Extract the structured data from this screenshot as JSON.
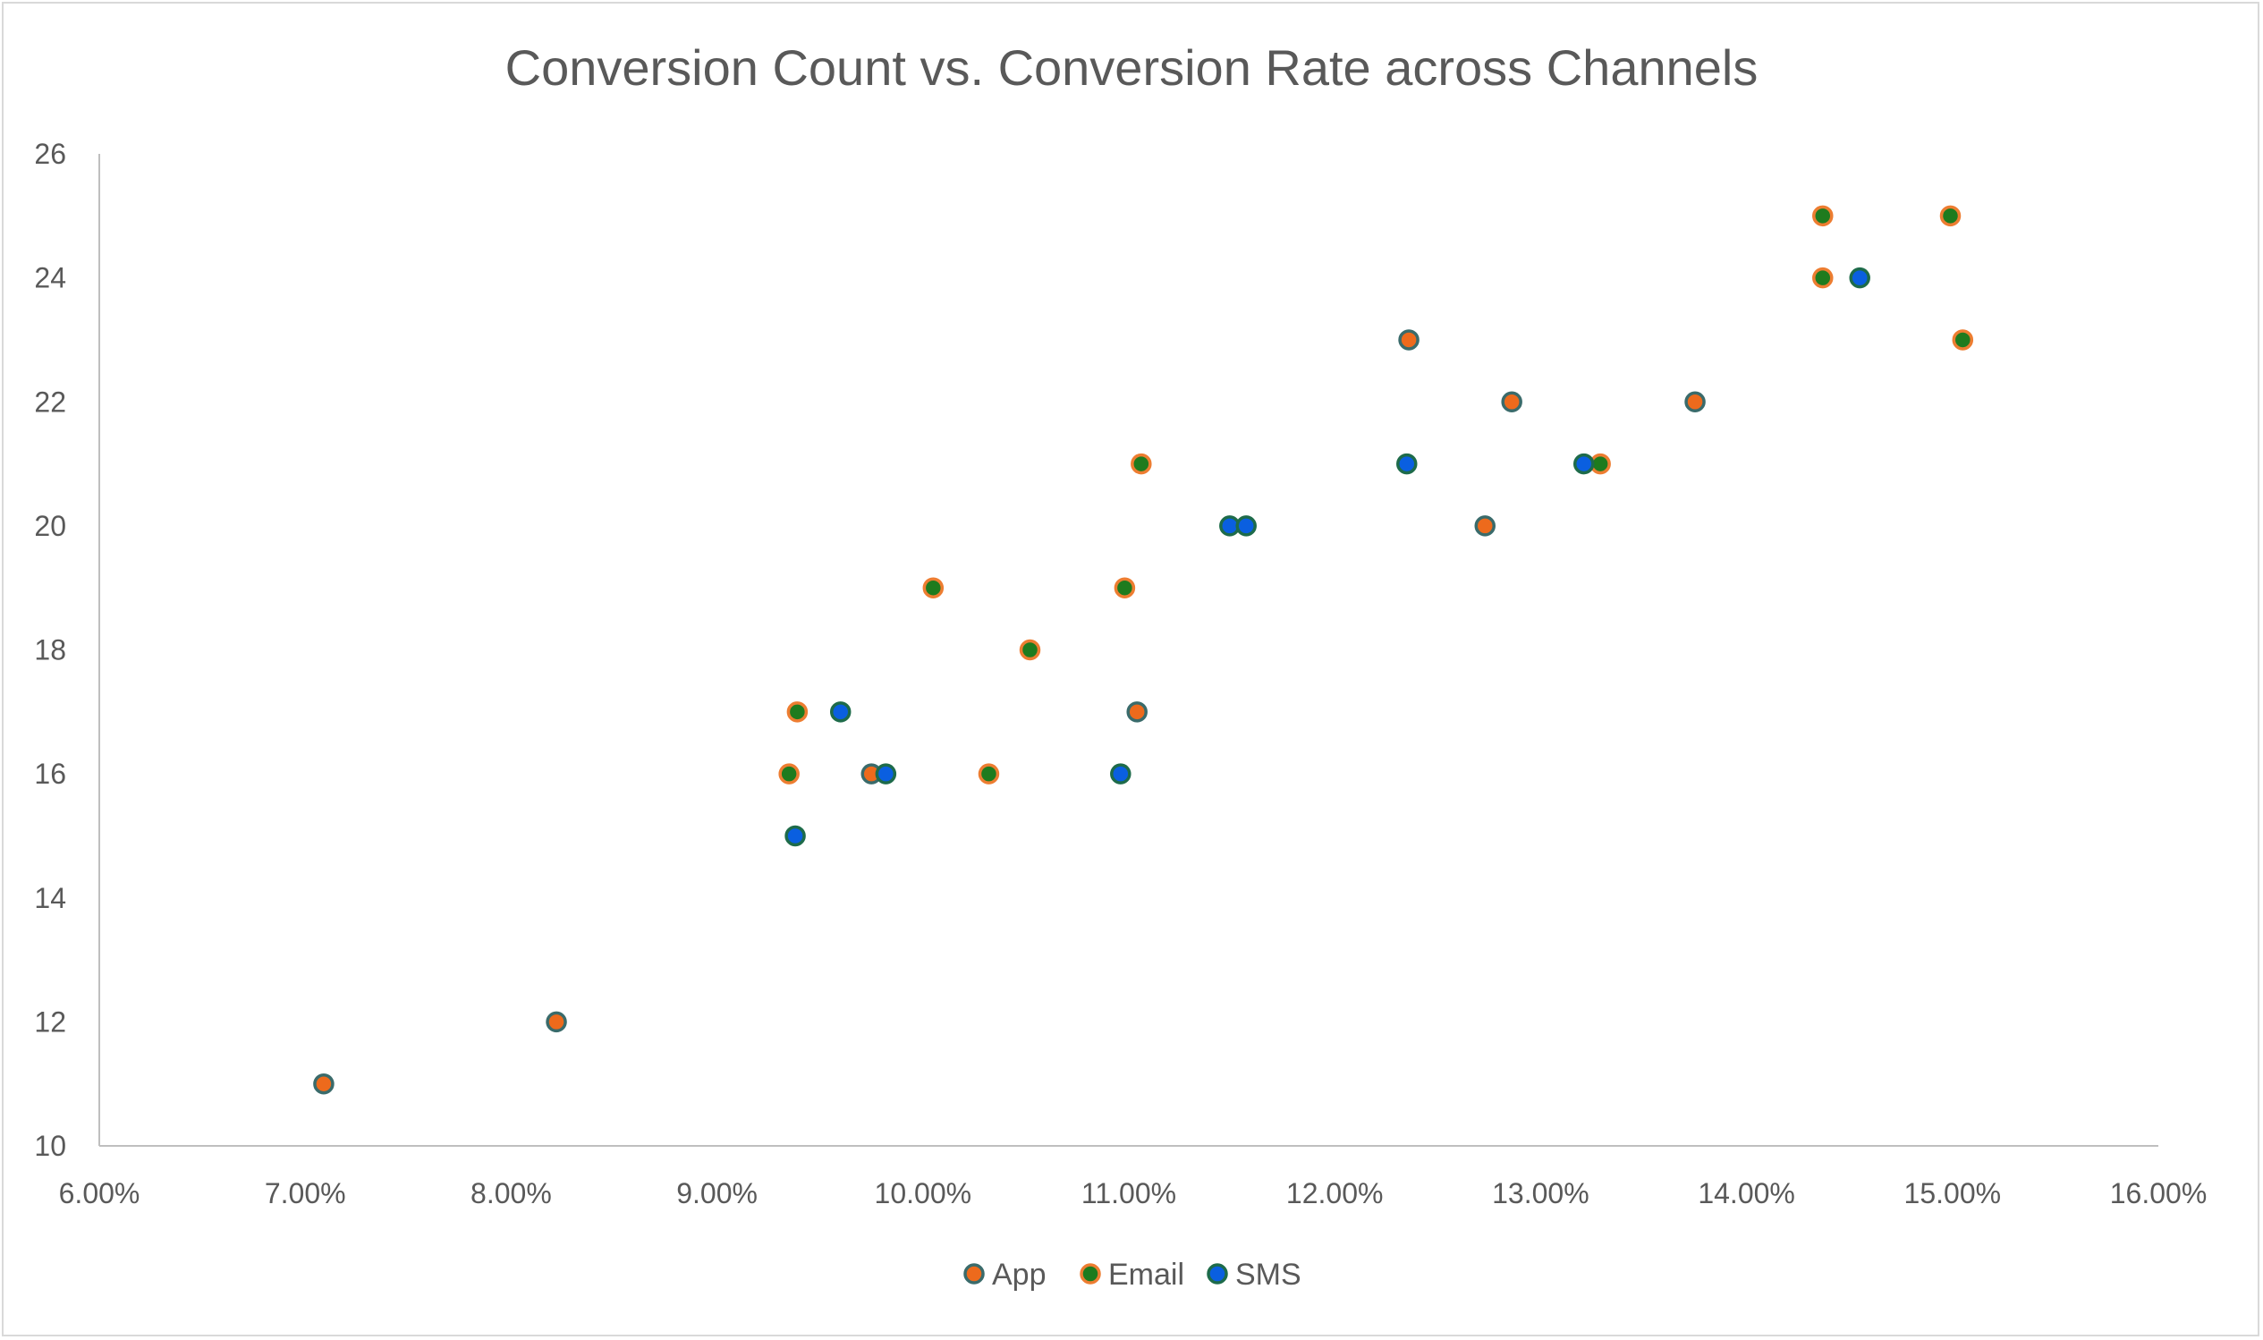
{
  "chart_data": {
    "type": "scatter",
    "title": "Conversion Count vs. Conversion Rate across Channels",
    "xlabel": "",
    "ylabel": "",
    "xlim": [
      0.06,
      0.16
    ],
    "ylim": [
      10,
      26
    ],
    "x_ticks": [
      "6.00%",
      "7.00%",
      "8.00%",
      "9.00%",
      "10.00%",
      "11.00%",
      "12.00%",
      "13.00%",
      "14.00%",
      "15.00%",
      "16.00%"
    ],
    "y_ticks": [
      "10",
      "12",
      "14",
      "16",
      "18",
      "20",
      "22",
      "24",
      "26"
    ],
    "grid": false,
    "legend_position": "bottom",
    "series": [
      {
        "name": "App",
        "fill": "#ed6a1c",
        "stroke": "#3a6b6b",
        "points": [
          {
            "x": 0.0709,
            "y": 11
          },
          {
            "x": 0.0822,
            "y": 12
          },
          {
            "x": 0.0975,
            "y": 16
          },
          {
            "x": 0.1104,
            "y": 17
          },
          {
            "x": 0.1236,
            "y": 23
          },
          {
            "x": 0.1286,
            "y": 22
          },
          {
            "x": 0.1273,
            "y": 20
          },
          {
            "x": 0.1375,
            "y": 22
          }
        ]
      },
      {
        "name": "Email",
        "fill": "#1e7b1e",
        "stroke": "#ed7d31",
        "points": [
          {
            "x": 0.0935,
            "y": 16
          },
          {
            "x": 0.0939,
            "y": 17
          },
          {
            "x": 0.1005,
            "y": 19
          },
          {
            "x": 0.1032,
            "y": 16
          },
          {
            "x": 0.1052,
            "y": 18
          },
          {
            "x": 0.1098,
            "y": 19
          },
          {
            "x": 0.1106,
            "y": 21
          },
          {
            "x": 0.1329,
            "y": 21
          },
          {
            "x": 0.1437,
            "y": 25
          },
          {
            "x": 0.1437,
            "y": 24
          },
          {
            "x": 0.1499,
            "y": 25
          },
          {
            "x": 0.1505,
            "y": 23
          }
        ]
      },
      {
        "name": "SMS",
        "fill": "#0a5fe0",
        "stroke": "#1e6b4a",
        "points": [
          {
            "x": 0.0938,
            "y": 15
          },
          {
            "x": 0.096,
            "y": 17
          },
          {
            "x": 0.0982,
            "y": 16
          },
          {
            "x": 0.1096,
            "y": 16
          },
          {
            "x": 0.1149,
            "y": 20
          },
          {
            "x": 0.1157,
            "y": 20
          },
          {
            "x": 0.1235,
            "y": 21
          },
          {
            "x": 0.1321,
            "y": 21
          },
          {
            "x": 0.1455,
            "y": 24
          }
        ]
      }
    ]
  }
}
